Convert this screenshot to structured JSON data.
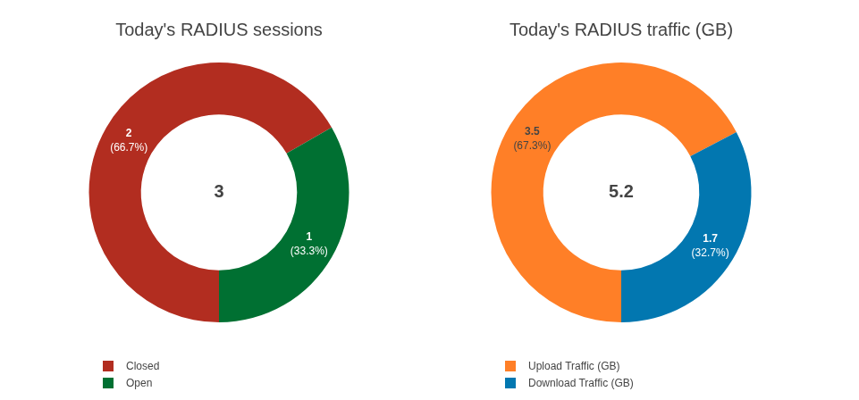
{
  "chart_data": [
    {
      "type": "doughnut",
      "title": "Today's RADIUS sessions",
      "categories": [
        "Closed",
        "Open"
      ],
      "values": [
        2,
        1
      ],
      "value_labels": [
        [
          "2",
          "(66.7%)"
        ],
        [
          "1",
          "(33.3%)"
        ]
      ],
      "colors": [
        "#b22d20",
        "#007032"
      ],
      "total": 3,
      "data_labels": true,
      "legend": "bottom-left"
    },
    {
      "type": "doughnut",
      "title": "Today's RADIUS traffic (GB)",
      "categories": [
        "Upload Traffic (GB)",
        "Download Traffic (GB)"
      ],
      "values": [
        3.5,
        1.7
      ],
      "value_labels": [
        [
          "3.5",
          "(67.3%)"
        ],
        [
          "1.7",
          "(32.7%)"
        ]
      ],
      "colors": [
        "#ff7f27",
        "#0277b0"
      ],
      "total": 5.2,
      "data_labels": true,
      "legend": "bottom-left"
    }
  ]
}
